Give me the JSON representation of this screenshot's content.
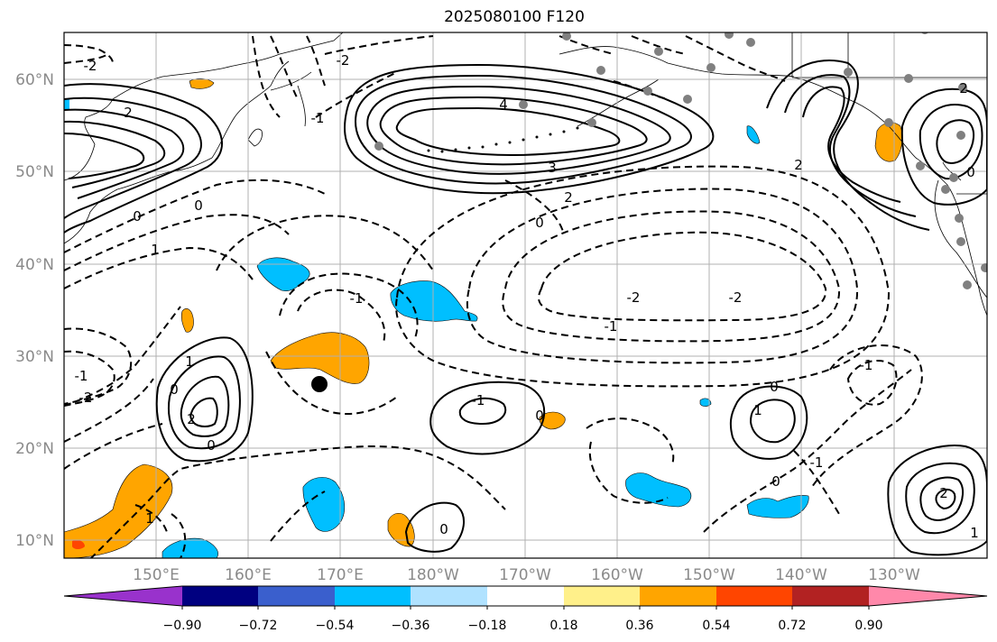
{
  "title": "2025080100 F120",
  "map": {
    "lat_ticks": [
      "60°N",
      "50°N",
      "40°N",
      "30°N",
      "20°N",
      "10°N"
    ],
    "lon_ticks": [
      "150°E",
      "160°E",
      "170°E",
      "180°W",
      "170°W",
      "160°W",
      "150°W",
      "140°W",
      "130°W"
    ],
    "contour_labels": [
      "-2",
      "0",
      "2",
      "-2",
      "-1",
      "0",
      "1",
      "2",
      "3",
      "4",
      "-2",
      "-2",
      "-1",
      "0",
      "-1",
      "1",
      "0",
      "-1",
      "0",
      "-2",
      "-1",
      "2",
      "0",
      "1",
      "0",
      "0",
      "2",
      "1",
      "2",
      "-1",
      "0",
      "1",
      "2",
      "0",
      "-1"
    ],
    "fill_colors": {
      "positive": "#ffa500",
      "negative": "#00bfff"
    }
  },
  "colorbar": {
    "labels": [
      "−0.90",
      "−0.72",
      "−0.54",
      "−0.36",
      "−0.18",
      "0.18",
      "0.36",
      "0.54",
      "0.72",
      "0.90"
    ],
    "colors": [
      "#9932cc",
      "#000080",
      "#3a5fcd",
      "#00bfff",
      "#b0e2ff",
      "#ffffff",
      "#fff08a",
      "#ffa500",
      "#ff4500",
      "#b22222",
      "#ff88aa"
    ]
  }
}
